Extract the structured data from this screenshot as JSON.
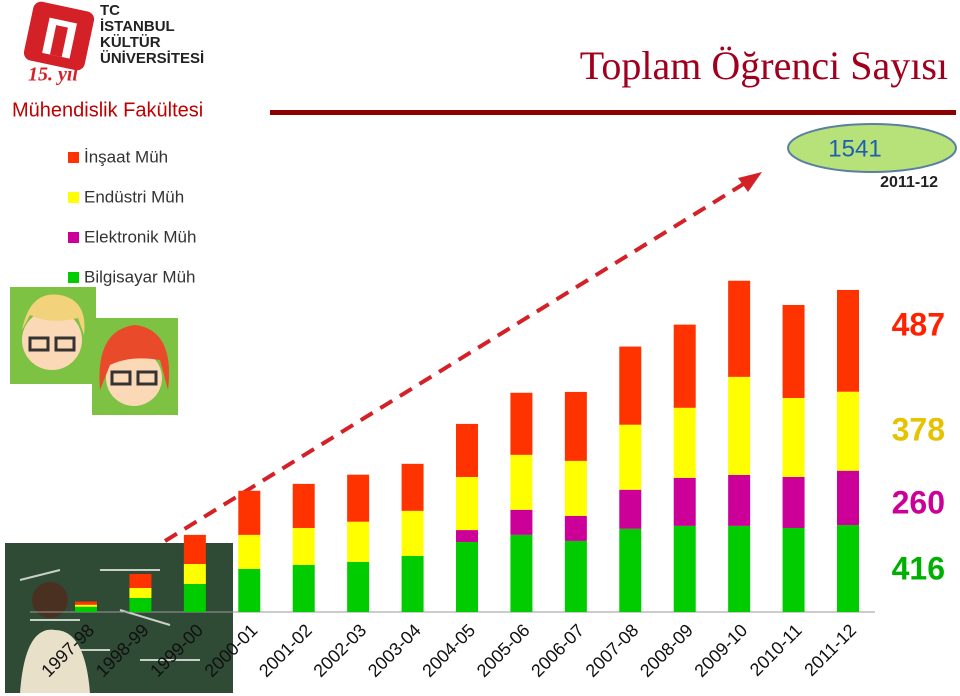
{
  "logo": {
    "lines": [
      "TC",
      "İSTANBUL",
      "KÜLTÜR",
      "ÜNİVERSİTESİ"
    ],
    "badge": "15. yıl"
  },
  "chart_data": {
    "type": "bar",
    "stacked": true,
    "title": "Toplam Öğrenci Sayısı",
    "subtitle": "Mühendislik Fakültesi",
    "categories": [
      "1997-98",
      "1998-99",
      "1999-00",
      "2000-01",
      "2001-02",
      "2002-03",
      "2003-04",
      "2004-05",
      "2005-06",
      "2006-07",
      "2007-08",
      "2008-09",
      "2009-10",
      "2010-11",
      "2011-12"
    ],
    "series": [
      {
        "name": "İnşaat Müh",
        "color": "#ff3300",
        "values": [
          15,
          67,
          139,
          211,
          211,
          225,
          225,
          254,
          297,
          330,
          374,
          398,
          460,
          445,
          487
        ]
      },
      {
        "name": "Endüstri Müh",
        "color": "#ffff00",
        "values": [
          10,
          48,
          96,
          163,
          177,
          192,
          216,
          254,
          263,
          263,
          311,
          335,
          469,
          378,
          378
        ]
      },
      {
        "name": "Elektronik Müh",
        "color": "#cc0099",
        "values": [
          0,
          0,
          0,
          0,
          0,
          0,
          0,
          57,
          120,
          120,
          187,
          230,
          244,
          244,
          260
        ]
      },
      {
        "name": "Bilgisayar Müh",
        "color": "#00cc00",
        "values": [
          25,
          67,
          134,
          206,
          225,
          240,
          268,
          335,
          369,
          340,
          398,
          412,
          412,
          402,
          416
        ]
      }
    ],
    "total": 1541,
    "ylim": [
      0,
      1700
    ]
  }
}
